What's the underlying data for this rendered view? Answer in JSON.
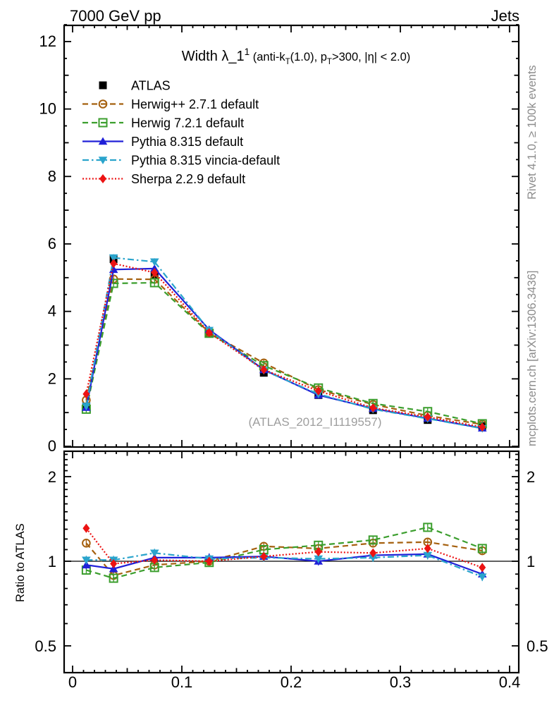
{
  "header": {
    "left": "7000 GeV pp",
    "right": "Jets"
  },
  "side_notes": {
    "top_right": "Rivet 4.1.0, ≥ 100k events",
    "bottom_right": "mcplots.cern.ch [arXiv:1306.3436]",
    "color": "#8c8c8c"
  },
  "watermark": {
    "text": "(ATLAS_2012_I1119557)",
    "color": "#9e9e9e"
  },
  "ratio_axis_title": "Ratio to ATLAS",
  "chart_data": {
    "type": "line",
    "title_segments": [
      {
        "text": "Width λ_1",
        "style": "large"
      },
      {
        "text": "1",
        "style": "sup"
      },
      {
        "text": " (anti-k",
        "style": "normal"
      },
      {
        "text": "T",
        "style": "sub"
      },
      {
        "text": "(1.0), p",
        "style": "normal"
      },
      {
        "text": "T",
        "style": "sub"
      },
      {
        "text": ">300, |η| < 2.0)",
        "style": "normal"
      }
    ],
    "x": [
      0.0125,
      0.0375,
      0.075,
      0.125,
      0.175,
      0.225,
      0.275,
      0.325,
      0.375
    ],
    "series": [
      {
        "name": "ATLAS",
        "color": "#000000",
        "marker": "square-filled",
        "line": "none",
        "values": [
          1.18,
          5.55,
          5.1,
          3.37,
          2.18,
          1.52,
          1.07,
          0.78,
          0.6
        ],
        "ratio": [
          1,
          1,
          1,
          1,
          1,
          1,
          1,
          1,
          1
        ]
      },
      {
        "name": "Herwig++ 2.7.1 default",
        "color": "#a5600e",
        "marker": "circle-open",
        "line": "dashed",
        "values": [
          1.37,
          4.96,
          4.95,
          3.37,
          2.47,
          1.68,
          1.24,
          0.91,
          0.65
        ],
        "ratio": [
          1.16,
          0.89,
          0.97,
          1.0,
          1.13,
          1.11,
          1.16,
          1.17,
          1.09
        ]
      },
      {
        "name": "Herwig 7.2.1 default",
        "color": "#3b9e2d",
        "marker": "square-open",
        "line": "dashed",
        "values": [
          1.1,
          4.83,
          4.85,
          3.35,
          2.39,
          1.73,
          1.27,
          1.03,
          0.67
        ],
        "ratio": [
          0.93,
          0.87,
          0.95,
          0.99,
          1.1,
          1.14,
          1.19,
          1.32,
          1.11
        ]
      },
      {
        "name": "Pythia 8.315 default",
        "color": "#2020d8",
        "marker": "triangle-up-filled",
        "line": "solid",
        "values": [
          1.15,
          5.24,
          5.27,
          3.46,
          2.27,
          1.52,
          1.12,
          0.83,
          0.54
        ],
        "ratio": [
          0.97,
          0.94,
          1.03,
          1.03,
          1.04,
          1.0,
          1.05,
          1.06,
          0.9
        ]
      },
      {
        "name": "Pythia 8.315 vincia-default",
        "color": "#2aa4cc",
        "marker": "triangle-down-filled",
        "line": "dashdot",
        "values": [
          1.19,
          5.59,
          5.47,
          3.44,
          2.25,
          1.55,
          1.1,
          0.82,
          0.53
        ],
        "ratio": [
          1.01,
          1.01,
          1.07,
          1.02,
          1.03,
          1.02,
          1.03,
          1.05,
          0.88
        ]
      },
      {
        "name": "Sherpa 2.2.9 default",
        "color": "#ec1313",
        "marker": "diamond-filled",
        "line": "dotted",
        "values": [
          1.55,
          5.42,
          5.15,
          3.37,
          2.27,
          1.64,
          1.14,
          0.87,
          0.57
        ],
        "ratio": [
          1.31,
          0.98,
          1.01,
          1.0,
          1.04,
          1.08,
          1.07,
          1.11,
          0.95
        ]
      }
    ],
    "axes": {
      "x": {
        "range": [
          0,
          0.4
        ],
        "ticks": [
          {
            "v": 0,
            "label": "0"
          },
          {
            "v": 0.1,
            "label": "0.1"
          },
          {
            "v": 0.2,
            "label": "0.2"
          },
          {
            "v": 0.3,
            "label": "0.3"
          },
          {
            "v": 0.4,
            "label": "0.4"
          }
        ]
      },
      "y_main": {
        "range": [
          0,
          12.5
        ],
        "scale": "linear",
        "ticks": [
          {
            "v": 0,
            "label": "0"
          },
          {
            "v": 2,
            "label": "2"
          },
          {
            "v": 4,
            "label": "4"
          },
          {
            "v": 6,
            "label": "6"
          },
          {
            "v": 8,
            "label": "8"
          },
          {
            "v": 10,
            "label": "10"
          },
          {
            "v": 12,
            "label": "12"
          }
        ]
      },
      "y_ratio": {
        "range": [
          0.4,
          2.43
        ],
        "scale": "log",
        "ticks": [
          {
            "v": 0.5,
            "label": "0.5"
          },
          {
            "v": 1,
            "label": "1"
          },
          {
            "v": 2,
            "label": "2"
          }
        ]
      },
      "grid": false,
      "legend_position": "upper-left-inside"
    }
  }
}
